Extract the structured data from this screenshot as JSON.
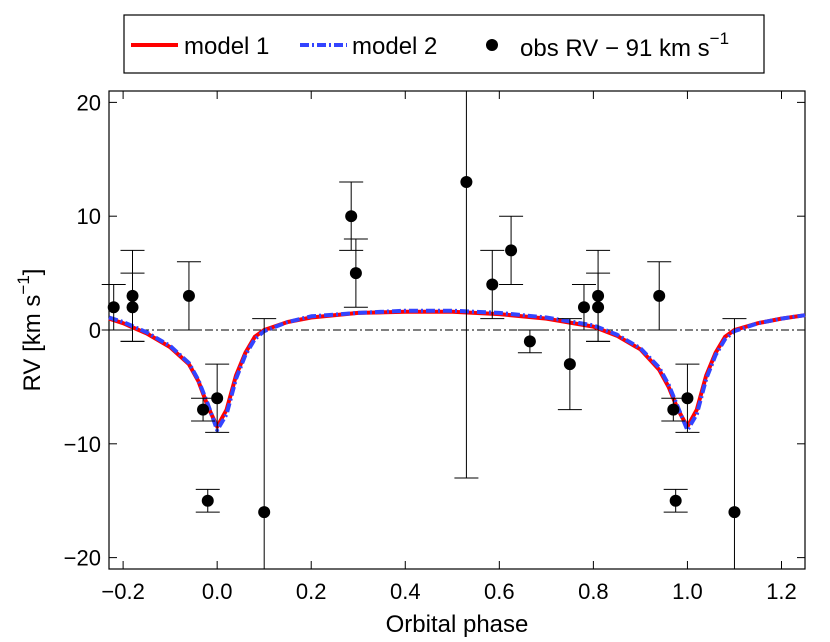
{
  "chart_data": {
    "type": "scatter",
    "title": "",
    "xlabel": "Orbital phase",
    "ylabel": "RV [km s",
    "ylabel_sup": "−1",
    "ylabel_close": "]",
    "xlim": [
      -0.23,
      1.25
    ],
    "ylim": [
      -21,
      21
    ],
    "xticks": [
      -0.2,
      0.0,
      0.2,
      0.4,
      0.6,
      0.8,
      1.0,
      1.2
    ],
    "xtick_labels": [
      "−0.2",
      "0.0",
      "0.2",
      "0.4",
      "0.6",
      "0.8",
      "1.0",
      "1.2"
    ],
    "yticks": [
      -20,
      -10,
      0,
      10,
      20
    ],
    "ytick_labels": [
      "−20",
      "−10",
      "0",
      "10",
      "20"
    ],
    "reference_line": 0,
    "legend": {
      "placement": "top",
      "model1": "model 1",
      "model2": "model 2",
      "obs": "obs RV − 91 km s",
      "obs_sup": "−1"
    },
    "series": [
      {
        "name": "obs RV − 91 km s−1",
        "kind": "errorbar",
        "color": "#000000",
        "points": [
          {
            "x": -0.22,
            "y": 2,
            "err": 2
          },
          {
            "x": -0.18,
            "y": 3,
            "err": 4
          },
          {
            "x": -0.18,
            "y": 2,
            "err": 3
          },
          {
            "x": -0.06,
            "y": 3,
            "err": 3
          },
          {
            "x": -0.03,
            "y": -7,
            "err": 1
          },
          {
            "x": -0.02,
            "y": -15,
            "err": 1
          },
          {
            "x": 0.0,
            "y": -6,
            "err": 3
          },
          {
            "x": 0.1,
            "y": -16,
            "err": 17
          },
          {
            "x": 0.285,
            "y": 10,
            "err": 3
          },
          {
            "x": 0.295,
            "y": 5,
            "err": 3
          },
          {
            "x": 0.53,
            "y": 13,
            "err": 26
          },
          {
            "x": 0.585,
            "y": 4,
            "err": 3
          },
          {
            "x": 0.625,
            "y": 7,
            "err": 3
          },
          {
            "x": 0.665,
            "y": -1,
            "err": 1
          },
          {
            "x": 0.75,
            "y": -3,
            "err": 4
          },
          {
            "x": 0.78,
            "y": 2,
            "err": 2
          },
          {
            "x": 0.81,
            "y": 3,
            "err": 4
          },
          {
            "x": 0.81,
            "y": 2,
            "err": 3
          },
          {
            "x": 0.94,
            "y": 3,
            "err": 3
          },
          {
            "x": 0.97,
            "y": -7,
            "err": 1
          },
          {
            "x": 0.975,
            "y": -15,
            "err": 1
          },
          {
            "x": 1.0,
            "y": -6,
            "err": 3
          },
          {
            "x": 1.1,
            "y": -16,
            "err": 17
          }
        ]
      },
      {
        "name": "model 1",
        "kind": "line",
        "color": "#ff0000",
        "x": [
          -0.23,
          -0.2,
          -0.15,
          -0.1,
          -0.06,
          -0.04,
          -0.02,
          0.0,
          0.02,
          0.04,
          0.06,
          0.08,
          0.1,
          0.15,
          0.2,
          0.3,
          0.4,
          0.5,
          0.6,
          0.7,
          0.8,
          0.85,
          0.9,
          0.94,
          0.96,
          0.98,
          1.0,
          1.02,
          1.04,
          1.06,
          1.08,
          1.1,
          1.15,
          1.2,
          1.25
        ],
        "y": [
          1.0,
          0.6,
          -0.3,
          -1.5,
          -3.0,
          -4.5,
          -6.7,
          -8.5,
          -7.0,
          -4.0,
          -2.0,
          -0.6,
          0.0,
          0.7,
          1.1,
          1.5,
          1.6,
          1.6,
          1.4,
          1.0,
          0.3,
          -0.5,
          -1.7,
          -3.5,
          -5.0,
          -7.0,
          -8.5,
          -7.0,
          -4.0,
          -2.0,
          -0.6,
          0.0,
          0.6,
          1.0,
          1.3
        ]
      },
      {
        "name": "model 2",
        "kind": "line",
        "color": "#3344ff",
        "x": [
          -0.23,
          -0.2,
          -0.15,
          -0.1,
          -0.06,
          -0.04,
          -0.02,
          0.0,
          0.02,
          0.04,
          0.06,
          0.08,
          0.1,
          0.15,
          0.2,
          0.3,
          0.4,
          0.5,
          0.6,
          0.7,
          0.8,
          0.85,
          0.9,
          0.94,
          0.96,
          0.98,
          1.0,
          1.02,
          1.04,
          1.06,
          1.08,
          1.1,
          1.15,
          1.2,
          1.25
        ],
        "y": [
          1.1,
          0.7,
          -0.2,
          -1.4,
          -2.9,
          -4.4,
          -6.5,
          -8.8,
          -7.4,
          -4.3,
          -2.2,
          -0.8,
          -0.1,
          0.7,
          1.2,
          1.5,
          1.7,
          1.7,
          1.5,
          1.1,
          0.4,
          -0.4,
          -1.6,
          -3.3,
          -4.8,
          -6.8,
          -8.8,
          -7.4,
          -4.3,
          -2.2,
          -0.8,
          -0.1,
          0.6,
          1.0,
          1.3
        ]
      }
    ]
  }
}
